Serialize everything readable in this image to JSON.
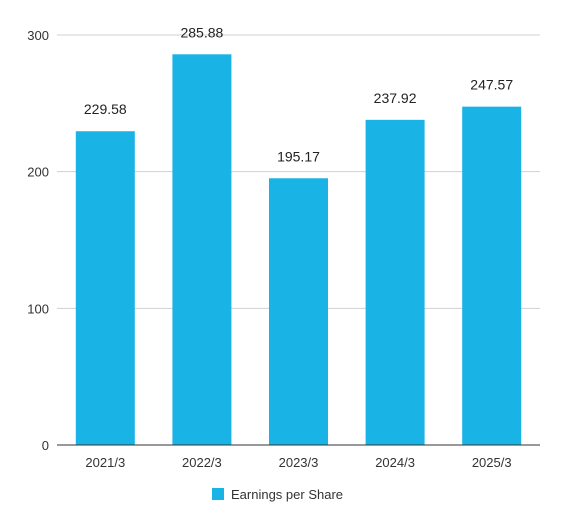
{
  "chart_data": {
    "type": "bar",
    "categories": [
      "2021/3",
      "2022/3",
      "2023/3",
      "2024/3",
      "2025/3"
    ],
    "series": [
      {
        "name": "Earnings per Share",
        "values": [
          229.58,
          285.88,
          195.17,
          237.92,
          247.57
        ],
        "color": "#1ab3e6"
      }
    ],
    "data_labels": [
      "229.58",
      "285.88",
      "195.17",
      "237.92",
      "247.57"
    ],
    "y_ticks": [
      0,
      100,
      200,
      300
    ],
    "ylim": [
      0,
      300
    ],
    "grid": true,
    "legend_position": "bottom",
    "title": "",
    "xlabel": "",
    "ylabel": ""
  }
}
